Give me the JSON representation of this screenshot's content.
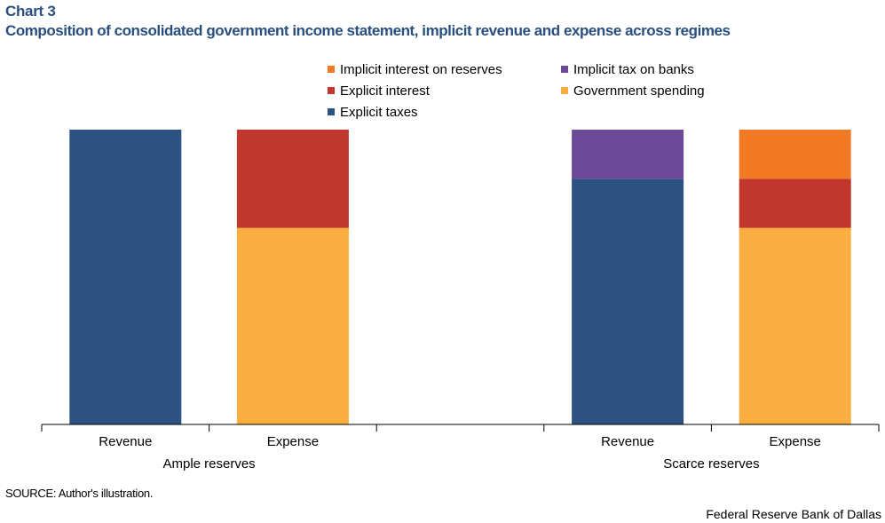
{
  "chart_number": "Chart 3",
  "title": "Composition of consolidated government income statement, implicit revenue and expense across regimes",
  "source": "SOURCE: Author's illustration.",
  "credit": "Federal Reserve Bank of Dallas",
  "colors": {
    "explicit_taxes": "#2c5281",
    "implicit_tax_on_banks": "#6d4a97",
    "government_spending": "#fbae40",
    "explicit_interest": "#c1372d",
    "implicit_interest_on_reserves": "#f37a25"
  },
  "chart_data": {
    "type": "bar",
    "stacked": true,
    "grid": false,
    "legend_position": "top",
    "groups": [
      "Ample reserves",
      "Scarce reserves"
    ],
    "categories": [
      "Revenue",
      "Expense",
      "",
      "Revenue",
      "Expense"
    ],
    "group_of_category": [
      0,
      0,
      null,
      1,
      1
    ],
    "ylim": [
      0,
      6
    ],
    "series": [
      {
        "name": "Explicit taxes",
        "color": "#2c5281",
        "values": [
          6,
          0,
          0,
          5,
          0
        ]
      },
      {
        "name": "Implicit tax on banks",
        "color": "#6d4a97",
        "values": [
          0,
          0,
          0,
          1,
          0
        ]
      },
      {
        "name": "Government spending",
        "color": "#fbae40",
        "values": [
          0,
          4,
          0,
          0,
          4
        ]
      },
      {
        "name": "Explicit interest",
        "color": "#c1372d",
        "values": [
          0,
          2,
          0,
          0,
          1
        ]
      },
      {
        "name": "Implicit interest on reserves",
        "color": "#f37a25",
        "values": [
          0,
          0,
          0,
          0,
          1
        ]
      }
    ],
    "legend_order": [
      "Implicit interest on reserves",
      "Implicit tax on banks",
      "Explicit interest",
      "Government spending",
      "Explicit taxes"
    ]
  }
}
